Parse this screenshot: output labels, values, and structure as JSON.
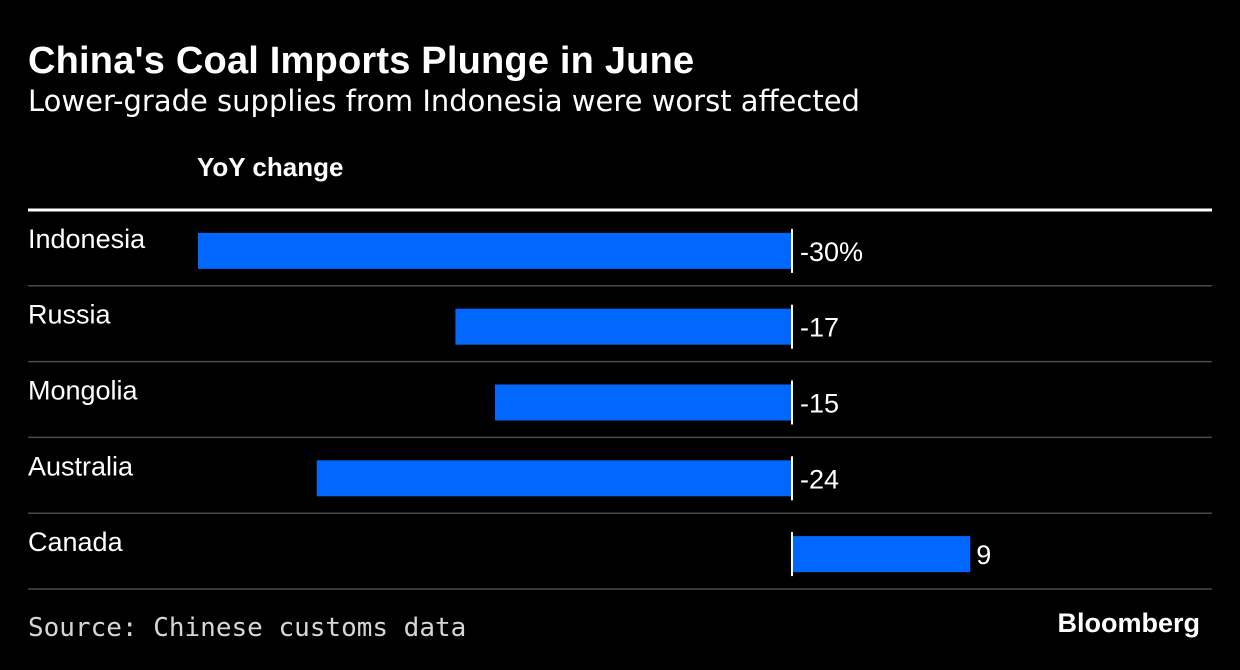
{
  "header": {
    "title": "China's Coal Imports Plunge in June",
    "subtitle": "Lower-grade supplies from Indonesia were worst affected",
    "column_header": "YoY change"
  },
  "footer": {
    "source": "Source: Chinese customs data",
    "brand": "Bloomberg"
  },
  "colors": {
    "background": "#000000",
    "bar": "#0068ff",
    "text": "#ffffff",
    "rule": "#ffffff",
    "divider": "#4a4a4a"
  },
  "chart_data": {
    "type": "bar",
    "orientation": "horizontal",
    "title": "China's Coal Imports Plunge in June",
    "subtitle": "Lower-grade supplies from Indonesia were worst affected",
    "xlabel": "YoY change",
    "unit": "%",
    "categories": [
      "Indonesia",
      "Russia",
      "Mongolia",
      "Australia",
      "Canada"
    ],
    "values": [
      -30,
      -17,
      -15,
      -24,
      9
    ],
    "value_labels": [
      "-30%",
      "-17",
      "-15",
      "-24",
      "9"
    ],
    "xlim": [
      -30,
      20
    ],
    "grid": false,
    "legend": "none"
  }
}
